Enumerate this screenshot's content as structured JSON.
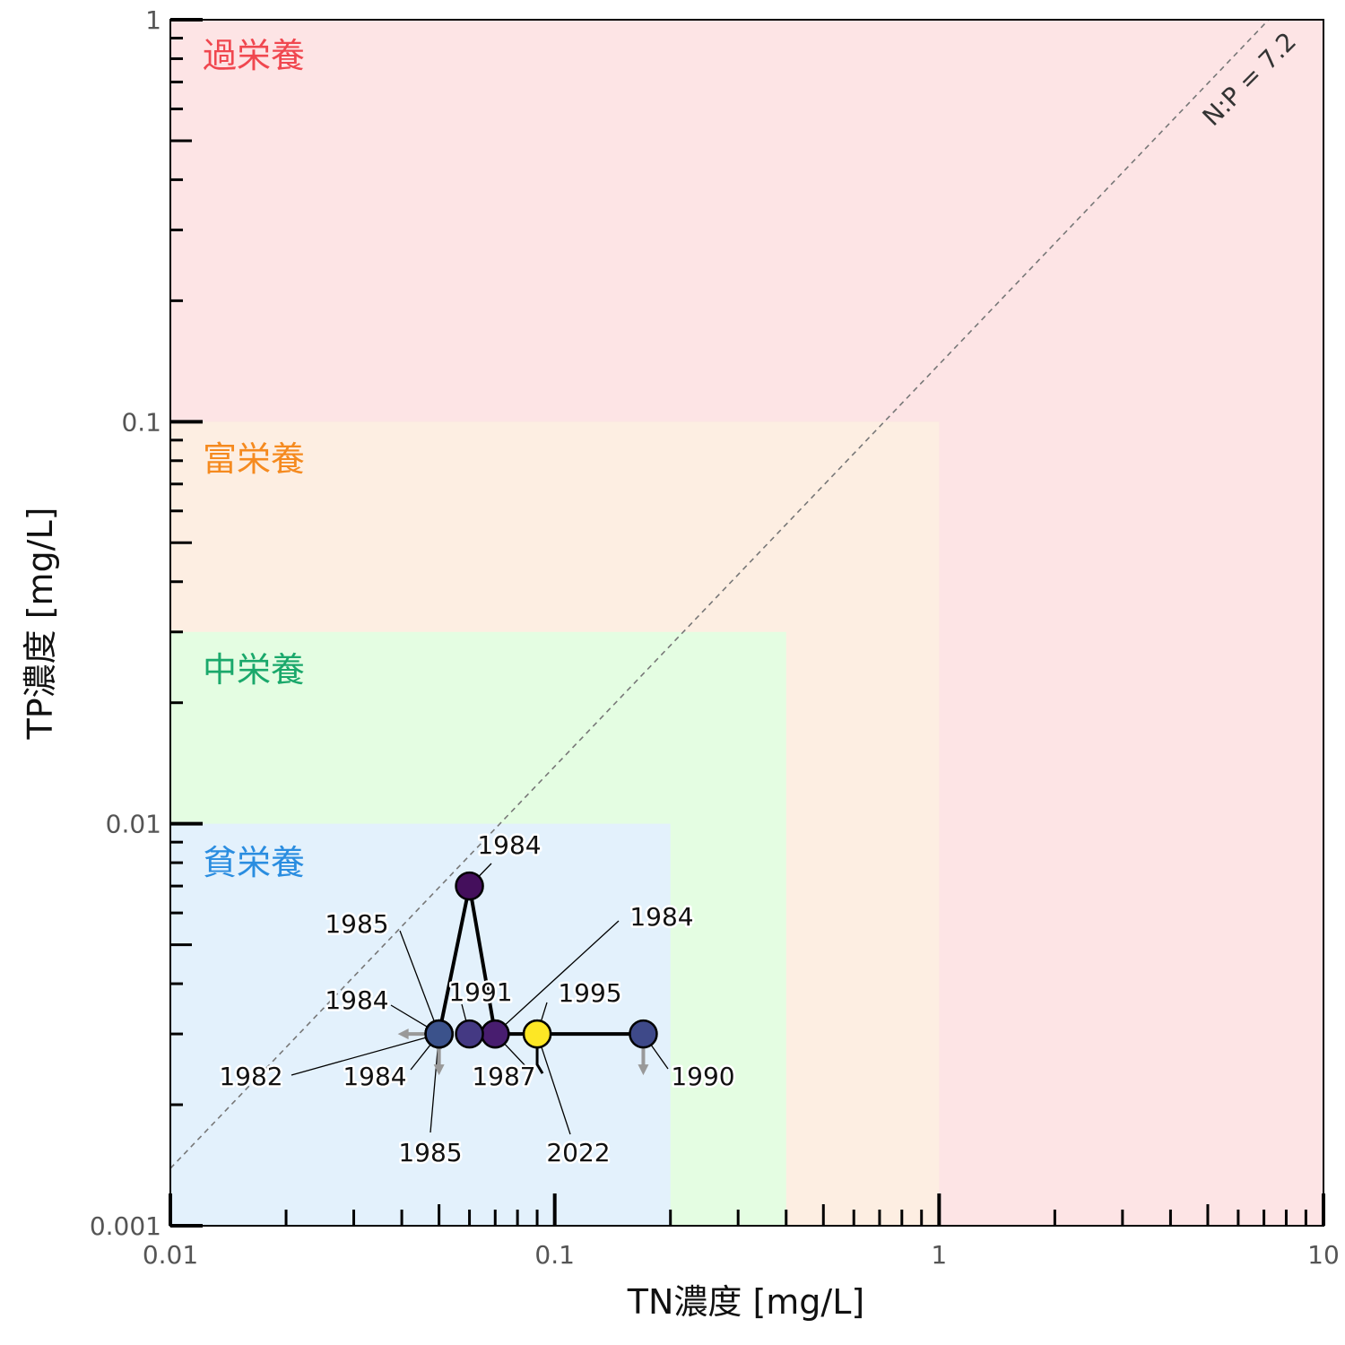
{
  "chart_data": {
    "type": "scatter",
    "x_axis": {
      "label": "TN濃度 [mg/L]",
      "scale": "log",
      "range": [
        0.01,
        10
      ],
      "ticks": [
        0.01,
        0.1,
        1,
        10
      ],
      "tick_labels": [
        "0.01",
        "0.1",
        "1",
        "10"
      ]
    },
    "y_axis": {
      "label": "TP濃度 [mg/L]",
      "scale": "log",
      "range": [
        0.001,
        1
      ],
      "ticks": [
        0.001,
        0.01,
        0.1,
        1
      ],
      "tick_labels": [
        "0.001",
        "0.01",
        "0.1",
        "1"
      ]
    },
    "zones": [
      {
        "label": "過栄養",
        "tn_max": 10,
        "tp_max": 1,
        "fill": "#fde4e5",
        "text_color": "#f0474f"
      },
      {
        "label": "富栄養",
        "tn_max": 1,
        "tp_max": 0.1,
        "fill": "#fdeee2",
        "text_color": "#f58a1f"
      },
      {
        "label": "中栄養",
        "tn_max": 0.4,
        "tp_max": 0.03,
        "fill": "#e4fde2",
        "text_color": "#1aa86b"
      },
      {
        "label": "貧栄養",
        "tn_max": 0.2,
        "tp_max": 0.01,
        "fill": "#e3f1fc",
        "text_color": "#2a8de0"
      }
    ],
    "ratio_line": {
      "label": "N:P = 7.2",
      "ratio": 7.2
    },
    "points": [
      {
        "year": "1982",
        "tn": 0.05,
        "tp": 0.003,
        "color": "#3e4a89",
        "below_tn": true,
        "below_tp": false
      },
      {
        "year": "1984",
        "tn": 0.05,
        "tp": 0.003,
        "color": "#3b528b",
        "below_tn": false,
        "below_tp": true
      },
      {
        "year": "1984",
        "tn": 0.05,
        "tp": 0.003,
        "color": "#414487",
        "below_tn": false,
        "below_tp": false
      },
      {
        "year": "1985",
        "tn": 0.05,
        "tp": 0.003,
        "color": "#3b528b",
        "below_tn": false,
        "below_tp": false
      },
      {
        "year": "1985",
        "tn": 0.05,
        "tp": 0.003,
        "color": "#3b528b",
        "below_tn": false,
        "below_tp": false
      },
      {
        "year": "1984",
        "tn": 0.06,
        "tp": 0.007,
        "color": "#440f5c",
        "below_tn": false,
        "below_tp": false
      },
      {
        "year": "1984",
        "tn": 0.07,
        "tp": 0.003,
        "color": "#46085c",
        "below_tn": false,
        "below_tp": false
      },
      {
        "year": "1987",
        "tn": 0.07,
        "tp": 0.003,
        "color": "#481d6f",
        "below_tn": false,
        "below_tp": false
      },
      {
        "year": "1990",
        "tn": 0.17,
        "tp": 0.003,
        "color": "#3e4989",
        "below_tn": false,
        "below_tp": true
      },
      {
        "year": "1991",
        "tn": 0.06,
        "tp": 0.003,
        "color": "#443983",
        "below_tn": false,
        "below_tp": false
      },
      {
        "year": "1995",
        "tn": 0.09,
        "tp": 0.003,
        "color": "#fde725",
        "below_tn": false,
        "below_tp": false
      },
      {
        "year": "2022",
        "tn": 0.09,
        "tp": 0.003,
        "color": "#fde725",
        "below_tn": false,
        "below_tp": false
      }
    ],
    "path": [
      [
        0.05,
        0.003
      ],
      [
        0.06,
        0.007
      ],
      [
        0.07,
        0.003
      ],
      [
        0.17,
        0.003
      ]
    ],
    "path_color": "#000000",
    "grid": false,
    "legend": "none"
  }
}
